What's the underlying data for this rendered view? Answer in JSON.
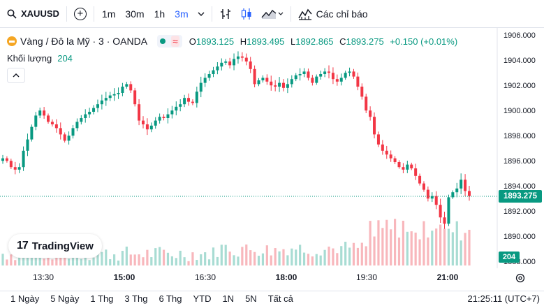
{
  "toolbar": {
    "symbol": "XAUUSD",
    "intervals": [
      "1m",
      "30m",
      "1h",
      "3m"
    ],
    "active_interval": "3m",
    "indicators_label": "Các chỉ báo"
  },
  "legend": {
    "title": "Vàng / Đô la Mỹ · 3 · OANDA",
    "o_key": "O",
    "o": "1893.125",
    "h_key": "H",
    "h": "1893.495",
    "l_key": "L",
    "l": "1892.865",
    "c_key": "C",
    "c": "1893.275",
    "change": "+0.150 (+0.01%)",
    "volume_label": "Khối lượng",
    "volume_value": "204"
  },
  "price_axis": {
    "labels": [
      "1906.000",
      "1904.000",
      "1902.000",
      "1900.000",
      "1898.000",
      "1896.000",
      "1894.000",
      "1892.000",
      "1890.000",
      "1888.000"
    ],
    "current_price": "1893.275",
    "current_volume": "204"
  },
  "time_axis": {
    "labels": [
      "13:30",
      "15:00",
      "16:30",
      "18:00",
      "19:30",
      "21:00"
    ],
    "bold_labels": [
      "15:00",
      "18:00",
      "21:00"
    ]
  },
  "bottom_bar": {
    "ranges": [
      "1 Ngày",
      "5 Ngày",
      "1 Thg",
      "3 Thg",
      "6 Thg",
      "YTD",
      "1N",
      "5N",
      "Tất cả"
    ],
    "clock": "21:25:11 (UTC+7)"
  },
  "branding": {
    "logo_text": "TradingView"
  },
  "colors": {
    "up": "#089981",
    "down": "#f23645",
    "vol_up": "#a8dcd3",
    "vol_down": "#f8b7bc",
    "accent": "#2962ff"
  },
  "chart_data": {
    "type": "candlestick",
    "symbol": "XAUUSD",
    "interval": "3m",
    "ylim": [
      1888,
      1906
    ],
    "x_ticks": [
      "13:30",
      "15:00",
      "16:30",
      "18:00",
      "19:30",
      "21:00"
    ],
    "close_series": [
      1896.3,
      1896.1,
      1895.6,
      1895.4,
      1895.6,
      1896.9,
      1897.8,
      1898.8,
      1899.7,
      1900.1,
      1899.7,
      1899.2,
      1899.0,
      1898.7,
      1898.2,
      1897.7,
      1898.1,
      1898.7,
      1899.2,
      1899.5,
      1899.8,
      1900.0,
      1900.3,
      1900.6,
      1900.9,
      1901.1,
      1901.3,
      1901.4,
      1901.5,
      1902.0,
      1902.2,
      1901.7,
      1900.6,
      1899.3,
      1899.0,
      1898.6,
      1898.9,
      1899.3,
      1899.6,
      1899.5,
      1899.8,
      1900.1,
      1900.4,
      1900.6,
      1901.1,
      1900.8,
      1900.7,
      1901.6,
      1902.3,
      1902.7,
      1903.0,
      1903.3,
      1903.6,
      1903.9,
      1904.0,
      1903.7,
      1904.2,
      1904.4,
      1904.3,
      1904.0,
      1903.4,
      1902.2,
      1902.5,
      1902.7,
      1902.4,
      1902.1,
      1902.0,
      1902.3,
      1901.9,
      1902.2,
      1902.6,
      1902.9,
      1903.0,
      1903.2,
      1902.7,
      1902.3,
      1902.8,
      1903.0,
      1903.2,
      1903.1,
      1902.6,
      1902.4,
      1902.7,
      1903.1,
      1903.2,
      1902.8,
      1902.0,
      1901.2,
      1900.1,
      1899.6,
      1898.2,
      1897.4,
      1896.9,
      1896.6,
      1896.3,
      1896.0,
      1895.6,
      1895.4,
      1895.8,
      1895.5,
      1894.9,
      1894.3,
      1893.8,
      1893.1,
      1893.3,
      1892.6,
      1891.6,
      1891.1,
      1893.2,
      1893.6,
      1893.9,
      1894.6,
      1893.7,
      1893.3
    ]
  }
}
